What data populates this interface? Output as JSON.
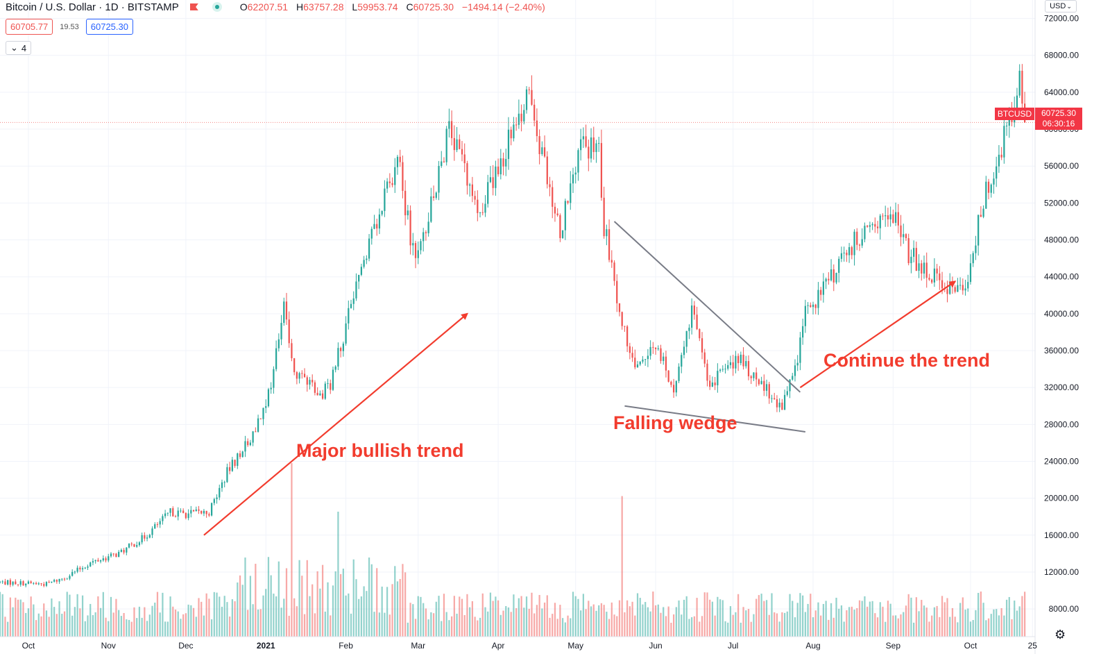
{
  "header": {
    "symbol_title": "Bitcoin / U.S. Dollar · 1D · BITSTAMP",
    "open_label": "O",
    "open": "62207.51",
    "high_label": "H",
    "high": "63757.28",
    "low_label": "L",
    "low": "59953.74",
    "close_label": "C",
    "close": "60725.30",
    "change": "−1494.14 (−2.40%)"
  },
  "quotes": {
    "sell": "60705.77",
    "spread": "19.53",
    "buy": "60725.30"
  },
  "indicators_toggle": {
    "count": "4"
  },
  "currency_button": "USD",
  "last_price": {
    "symbol": "BTCUSD",
    "price": "60725.30",
    "countdown": "06:30:16"
  },
  "annotations": {
    "bullish": "Major bullish trend",
    "wedge": "Falling wedge",
    "continue": "Continue the trend"
  },
  "colors": {
    "up": "#26a69a",
    "down": "#ef5350",
    "arrow": "#f23c2e",
    "wedge_line": "#787b86"
  },
  "chart_data": {
    "type": "candlestick",
    "title": "Bitcoin / U.S. Dollar",
    "interval": "1D",
    "exchange": "BITSTAMP",
    "y_axis": {
      "range": [
        5000,
        74000
      ],
      "ticks": [
        "8000.00",
        "12000.00",
        "16000.00",
        "20000.00",
        "24000.00",
        "28000.00",
        "32000.00",
        "36000.00",
        "40000.00",
        "44000.00",
        "48000.00",
        "52000.00",
        "56000.00",
        "60000.00",
        "64000.00",
        "68000.00",
        "72000.00"
      ],
      "position": "right",
      "grid": true
    },
    "x_axis": {
      "range": [
        "2020-09-20",
        "2021-10-26"
      ],
      "tick_labels": [
        {
          "date": "2020-10-01",
          "label": "Oct"
        },
        {
          "date": "2020-11-01",
          "label": "Nov"
        },
        {
          "date": "2020-12-01",
          "label": "Dec"
        },
        {
          "date": "2021-01-01",
          "label": "2021"
        },
        {
          "date": "2021-02-01",
          "label": "Feb"
        },
        {
          "date": "2021-03-01",
          "label": "Mar"
        },
        {
          "date": "2021-04-01",
          "label": "Apr"
        },
        {
          "date": "2021-05-01",
          "label": "May"
        },
        {
          "date": "2021-06-01",
          "label": "Jun"
        },
        {
          "date": "2021-07-01",
          "label": "Jul"
        },
        {
          "date": "2021-08-01",
          "label": "Aug"
        },
        {
          "date": "2021-09-01",
          "label": "Sep"
        },
        {
          "date": "2021-10-01",
          "label": "Oct"
        },
        {
          "date": "2021-10-25",
          "label": "25"
        }
      ]
    },
    "price_path": [
      {
        "date": "2020-09-20",
        "close": 10900
      },
      {
        "date": "2020-10-08",
        "close": 10700
      },
      {
        "date": "2020-10-15",
        "close": 11400
      },
      {
        "date": "2020-10-25",
        "close": 13000
      },
      {
        "date": "2020-11-05",
        "close": 14000
      },
      {
        "date": "2020-11-15",
        "close": 15800
      },
      {
        "date": "2020-11-25",
        "close": 18500
      },
      {
        "date": "2020-12-01",
        "close": 18300
      },
      {
        "date": "2020-12-10",
        "close": 18500
      },
      {
        "date": "2020-12-17",
        "close": 22800
      },
      {
        "date": "2020-12-27",
        "close": 27000
      },
      {
        "date": "2021-01-03",
        "close": 32000
      },
      {
        "date": "2021-01-08",
        "close": 40500
      },
      {
        "date": "2021-01-12",
        "close": 34000
      },
      {
        "date": "2021-01-22",
        "close": 31000
      },
      {
        "date": "2021-01-26",
        "close": 32500
      },
      {
        "date": "2021-02-08",
        "close": 46000
      },
      {
        "date": "2021-02-21",
        "close": 57000
      },
      {
        "date": "2021-02-28",
        "close": 45000
      },
      {
        "date": "2021-03-13",
        "close": 60000
      },
      {
        "date": "2021-03-25",
        "close": 51500
      },
      {
        "date": "2021-04-05",
        "close": 58500
      },
      {
        "date": "2021-04-13",
        "close": 63500
      },
      {
        "date": "2021-04-25",
        "close": 49000
      },
      {
        "date": "2021-05-03",
        "close": 58000
      },
      {
        "date": "2021-05-10",
        "close": 58000
      },
      {
        "date": "2021-05-12",
        "close": 49500
      },
      {
        "date": "2021-05-19",
        "close": 39000
      },
      {
        "date": "2021-05-23",
        "close": 34500
      },
      {
        "date": "2021-06-01",
        "close": 36500
      },
      {
        "date": "2021-06-08",
        "close": 32000
      },
      {
        "date": "2021-06-15",
        "close": 40000
      },
      {
        "date": "2021-06-22",
        "close": 32500
      },
      {
        "date": "2021-07-03",
        "close": 35000
      },
      {
        "date": "2021-07-20",
        "close": 29800
      },
      {
        "date": "2021-07-25",
        "close": 34000
      },
      {
        "date": "2021-07-29",
        "close": 40000
      },
      {
        "date": "2021-08-08",
        "close": 44000
      },
      {
        "date": "2021-08-20",
        "close": 49000
      },
      {
        "date": "2021-09-03",
        "close": 50000
      },
      {
        "date": "2021-09-07",
        "close": 46500
      },
      {
        "date": "2021-09-21",
        "close": 43000
      },
      {
        "date": "2021-09-29",
        "close": 42000
      },
      {
        "date": "2021-10-05",
        "close": 51500
      },
      {
        "date": "2021-10-15",
        "close": 60000
      },
      {
        "date": "2021-10-19",
        "close": 64000
      },
      {
        "date": "2021-10-20",
        "close": 66000
      },
      {
        "date": "2021-10-22",
        "close": 60725
      }
    ],
    "last_price": 60725.3,
    "volume": {
      "pane": "bottom",
      "spikes": [
        {
          "date": "2021-01-11",
          "relative": 1.0
        },
        {
          "date": "2021-01-29",
          "relative": 0.72
        },
        {
          "date": "2021-05-19",
          "relative": 0.81
        }
      ]
    },
    "drawings": [
      {
        "kind": "arrow",
        "label": "Major bullish trend",
        "from": {
          "date": "2020-12-08",
          "price": 16000
        },
        "to": {
          "date": "2021-03-20",
          "price": 40000
        }
      },
      {
        "kind": "trendline",
        "label": "Falling wedge upper",
        "from": {
          "date": "2021-05-16",
          "price": 50000
        },
        "to": {
          "date": "2021-07-27",
          "price": 31500
        }
      },
      {
        "kind": "trendline",
        "label": "Falling wedge lower",
        "from": {
          "date": "2021-05-20",
          "price": 30000
        },
        "to": {
          "date": "2021-07-29",
          "price": 27200
        }
      },
      {
        "kind": "arrow",
        "label": "Continue the trend",
        "from": {
          "date": "2021-07-27",
          "price": 32000
        },
        "to": {
          "date": "2021-09-25",
          "price": 43500
        }
      }
    ]
  }
}
